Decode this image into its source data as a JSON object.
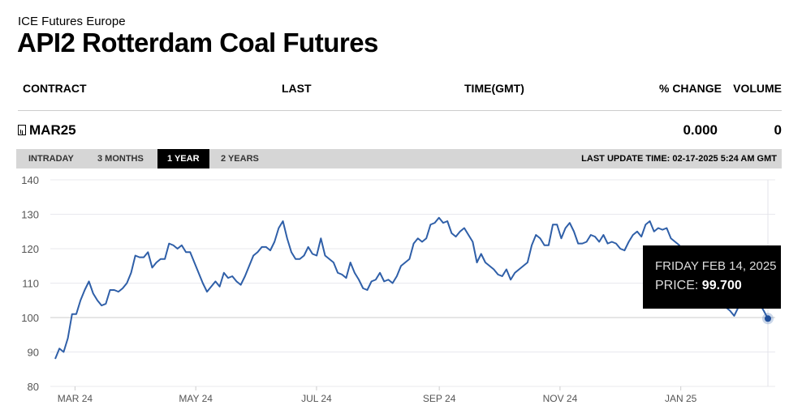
{
  "header": {
    "exchange": "ICE Futures Europe",
    "title": "API2 Rotterdam Coal Futures"
  },
  "table": {
    "columns": [
      "CONTRACT",
      "LAST",
      "TIME(GMT)",
      "% CHANGE",
      "VOLUME"
    ],
    "row": {
      "contract": "MAR25",
      "change": "0.000",
      "volume": "0"
    }
  },
  "tabs": [
    {
      "label": "INTRADAY"
    },
    {
      "label": "3 MONTHS"
    },
    {
      "label": "1 YEAR",
      "active": true
    },
    {
      "label": "2 YEARS"
    }
  ],
  "last_update": "LAST UPDATE TIME: 02-17-2025 5:24 AM GMT",
  "tooltip": {
    "date": "FRIDAY FEB 14, 2025",
    "price_label": "PRICE:",
    "price": "99.700"
  },
  "chart_data": {
    "type": "line",
    "title": "",
    "xlabel": "",
    "ylabel": "",
    "ylim": [
      80,
      140
    ],
    "yticks": [
      80,
      90,
      100,
      110,
      120,
      130,
      140
    ],
    "x_start": "2024-02-20",
    "x_end": "2025-02-14",
    "xticks": [
      {
        "date": "2024-03-01",
        "label": "MAR 24"
      },
      {
        "date": "2024-05-01",
        "label": "MAY 24"
      },
      {
        "date": "2024-07-01",
        "label": "JUL 24"
      },
      {
        "date": "2024-09-01",
        "label": "SEP 24"
      },
      {
        "date": "2024-11-01",
        "label": "NOV 24"
      },
      {
        "date": "2025-01-01",
        "label": "JAN 25"
      }
    ],
    "color": "#2f5fa8",
    "values": [
      88,
      91,
      90,
      94,
      101,
      101,
      105,
      108,
      110.5,
      107,
      105,
      103.5,
      104,
      108,
      108,
      107.5,
      108.5,
      110,
      113,
      118,
      117.5,
      117.5,
      119,
      114.5,
      116,
      117,
      117,
      121.5,
      121,
      120,
      121,
      119,
      119,
      116,
      113,
      110,
      107.5,
      109,
      110.5,
      109,
      113,
      111.5,
      112,
      110.5,
      109.5,
      112,
      115,
      118,
      119,
      120.5,
      120.5,
      119.5,
      122,
      126,
      128,
      123,
      119,
      117,
      117,
      118,
      120.5,
      118.5,
      118,
      123,
      118,
      117,
      116,
      113,
      112.5,
      111.5,
      116,
      113,
      111,
      108.5,
      108,
      110.5,
      111,
      113,
      110.5,
      111,
      110,
      112,
      115,
      116,
      117,
      121.5,
      123,
      122,
      123,
      127,
      127.5,
      129,
      127.5,
      128,
      124.5,
      123.5,
      125,
      126,
      124,
      122,
      116,
      118.5,
      116,
      115,
      114,
      112.5,
      112,
      114,
      111,
      113,
      114,
      115,
      116,
      121,
      124,
      123,
      121,
      121,
      127,
      127,
      123,
      126,
      127.5,
      125,
      121.5,
      121.5,
      122,
      124,
      123.5,
      122,
      124,
      121.5,
      122,
      121.5,
      120,
      119.5,
      122,
      124,
      125,
      123.5,
      127,
      128,
      125,
      126,
      125.5,
      126,
      123,
      122,
      121,
      118,
      113,
      112,
      112,
      110,
      109,
      108,
      107,
      106,
      104,
      103,
      102,
      100.5,
      103,
      106,
      106,
      105,
      104,
      104,
      102,
      99.7
    ]
  }
}
